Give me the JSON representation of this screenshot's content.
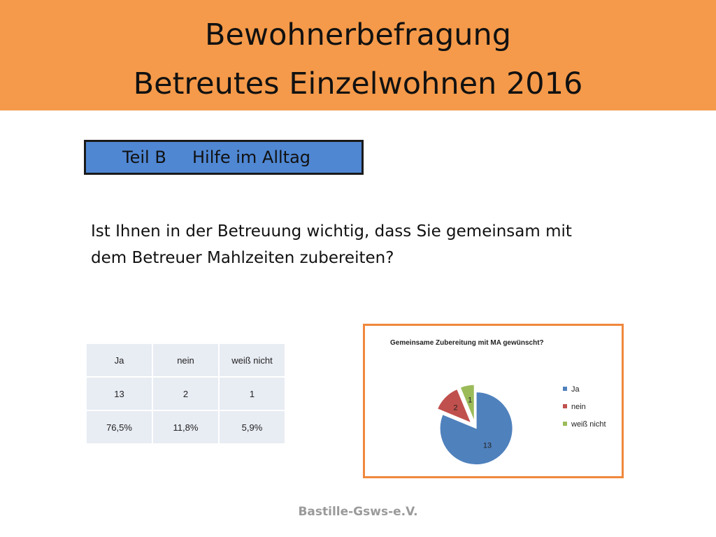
{
  "header": {
    "title_line1": "Bewohnerbefragung",
    "title_line2": "Betreutes Einzelwohnen 2016"
  },
  "section": {
    "part": "Teil B",
    "topic": "Hilfe im Alltag"
  },
  "question": {
    "line1": "Ist Ihnen in der Betreuung wichtig, dass Sie gemeinsam mit",
    "line2": "dem Betreuer Mahlzeiten zubereiten?"
  },
  "table": {
    "headers": [
      "Ja",
      "nein",
      "weiß nicht"
    ],
    "counts": [
      "13",
      "2",
      "1"
    ],
    "percents": [
      "76,5%",
      "11,8%",
      "5,9%"
    ]
  },
  "chart_data": {
    "type": "pie",
    "title": "Gemeinsame Zubereitung mit MA gewünscht?",
    "categories": [
      "Ja",
      "nein",
      "weiß nicht"
    ],
    "values": [
      13,
      2,
      1
    ],
    "data_labels": [
      "13",
      "2",
      "1"
    ],
    "colors": [
      "#4f81bd",
      "#c0504d",
      "#9bbb59"
    ],
    "exploded": true,
    "legend_position": "right"
  },
  "footer": {
    "text": "Bastille-Gsws-e.V."
  }
}
